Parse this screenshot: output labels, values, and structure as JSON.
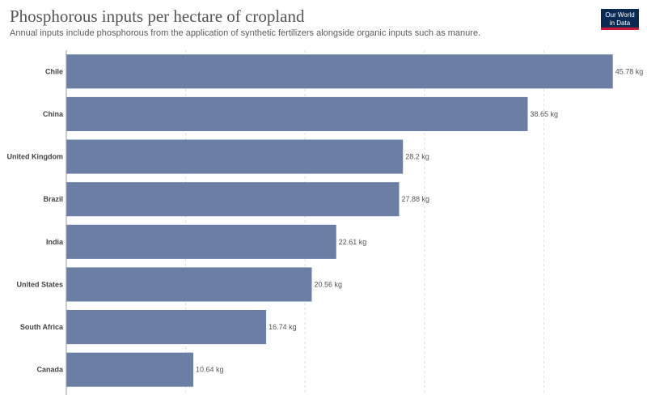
{
  "chart_data": {
    "type": "bar",
    "orientation": "horizontal",
    "title": "Phosphorous inputs per hectare of cropland",
    "subtitle": "Annual inputs include phosphorous from the application of synthetic fertilizers alongside organic inputs such as manure.",
    "categories": [
      "Chile",
      "China",
      "United Kingdom",
      "Brazil",
      "India",
      "United States",
      "South Africa",
      "Canada"
    ],
    "values": [
      45.78,
      38.65,
      28.2,
      27.88,
      22.61,
      20.56,
      16.74,
      10.64
    ],
    "value_labels": [
      "45.78 kg",
      "38.65 kg",
      "28.2 kg",
      "27.88 kg",
      "22.61 kg",
      "20.56 kg",
      "16.74 kg",
      "10.64 kg"
    ],
    "unit": "kg",
    "xlim": [
      0,
      50
    ],
    "grid": true,
    "bar_color": "#6a7ea6"
  },
  "logo": {
    "line1": "Our World",
    "line2": "in Data",
    "bg_color": "#0b2a53",
    "accent_color": "#c8193a"
  }
}
